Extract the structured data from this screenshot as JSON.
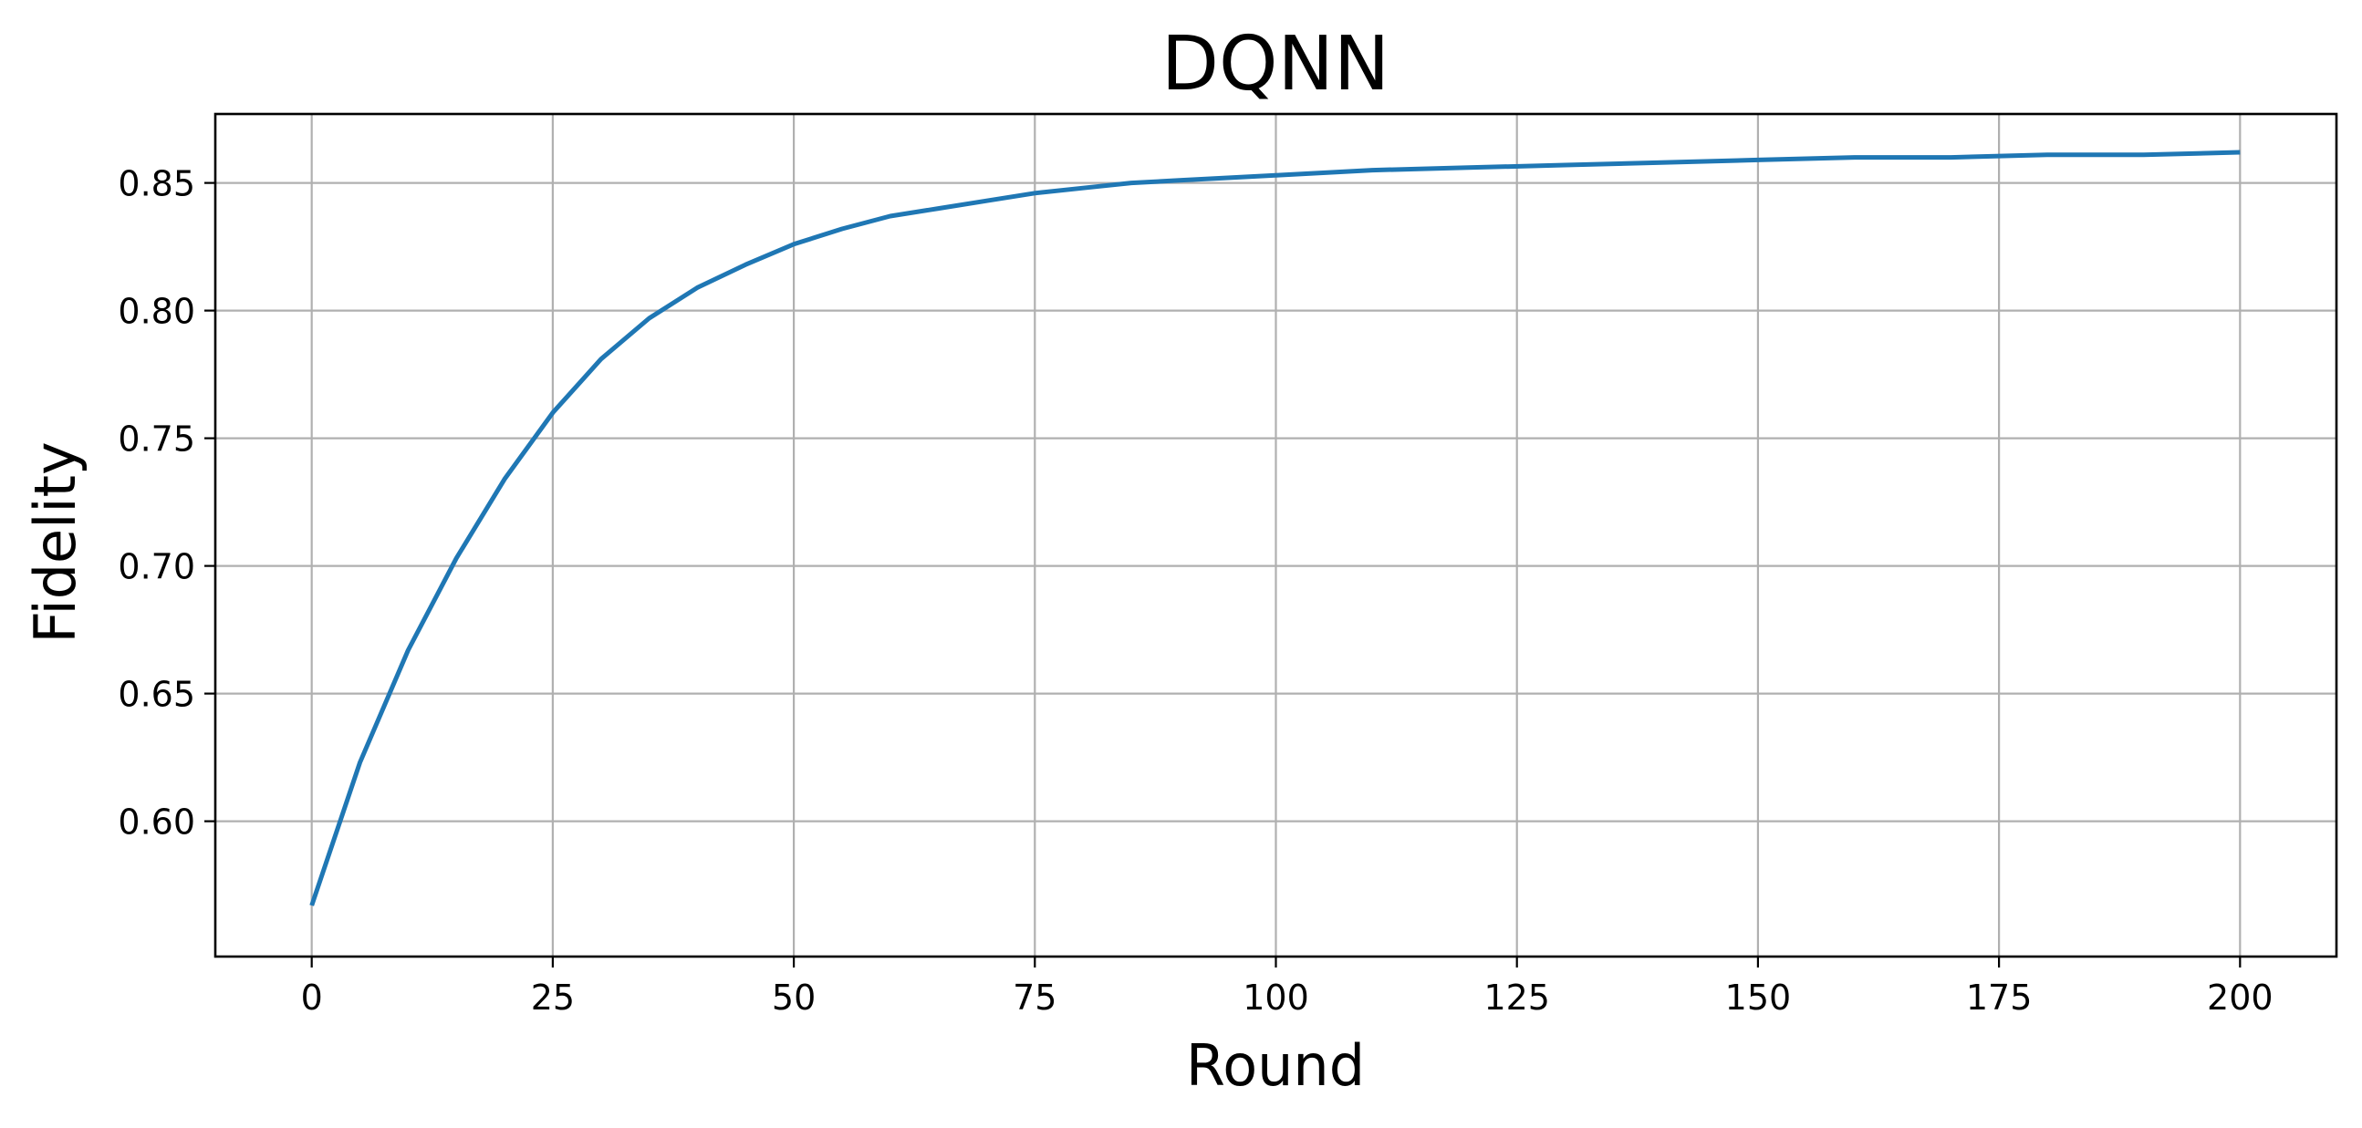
{
  "chart_data": {
    "type": "line",
    "title": "DQNN",
    "xlabel": "Round",
    "ylabel": "Fidelity",
    "xlim": [
      -10,
      210
    ],
    "ylim": [
      0.547,
      0.877
    ],
    "xticks": [
      0,
      25,
      50,
      75,
      100,
      125,
      150,
      175,
      200
    ],
    "xtick_labels": [
      "0",
      "25",
      "50",
      "75",
      "100",
      "125",
      "150",
      "175",
      "200"
    ],
    "yticks": [
      0.6,
      0.65,
      0.7,
      0.75,
      0.8,
      0.85
    ],
    "ytick_labels": [
      "0.60",
      "0.65",
      "0.70",
      "0.75",
      "0.80",
      "0.85"
    ],
    "grid": true,
    "legend": "none",
    "series": [
      {
        "color": "#1f77b4",
        "x": [
          0,
          5,
          10,
          15,
          20,
          25,
          30,
          35,
          40,
          45,
          50,
          55,
          60,
          65,
          70,
          75,
          80,
          85,
          90,
          95,
          100,
          110,
          120,
          130,
          140,
          150,
          160,
          170,
          180,
          190,
          200
        ],
        "y": [
          0.567,
          0.623,
          0.667,
          0.703,
          0.734,
          0.76,
          0.781,
          0.797,
          0.809,
          0.818,
          0.826,
          0.832,
          0.837,
          0.84,
          0.843,
          0.846,
          0.848,
          0.85,
          0.851,
          0.852,
          0.853,
          0.855,
          0.856,
          0.857,
          0.858,
          0.859,
          0.86,
          0.86,
          0.861,
          0.861,
          0.862
        ]
      }
    ]
  }
}
